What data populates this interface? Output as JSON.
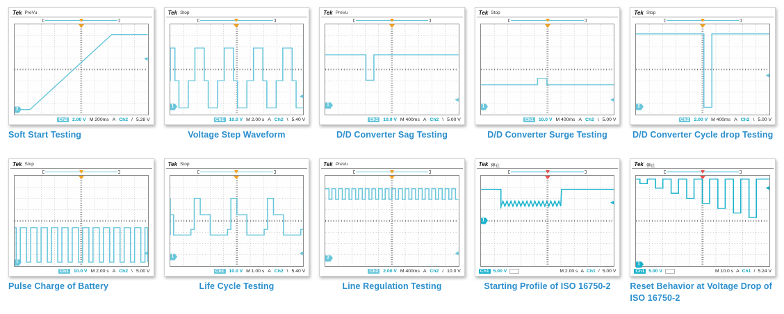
{
  "page": {
    "bg": "#ffffff",
    "caption_color": "#2b8fce",
    "scope_logo": "Tek"
  },
  "chart_data": [
    {
      "type": "line",
      "title": "Soft Start Testing",
      "scope": {
        "status": "PreVu"
      },
      "trace_color": "#68c6db",
      "t_color": "#f6a21d",
      "x_range": [
        0,
        10
      ],
      "y_range": [
        -4,
        4
      ],
      "grid": true,
      "readout": {
        "ch": "Ch2",
        "scale": "2.00 V",
        "time": "M 200ms",
        "acq": "A",
        "trig_ch": "Ch2",
        "slope": "/",
        "level": "5.28 V",
        "layout": "right"
      },
      "ch_marker": {
        "label": "2",
        "y": -3.55
      },
      "trig_y": 0.9,
      "waveform": [
        {
          "pts": [
            [
              0,
              -3.55
            ],
            [
              1.15,
              -3.55
            ],
            [
              7.3,
              3.1
            ],
            [
              10,
              3.1
            ]
          ]
        }
      ]
    },
    {
      "type": "line",
      "title": "Voltage Step Waveform",
      "scope": {
        "status": "Stop"
      },
      "trace_color": "#68c6db",
      "t_color": "#f6a21d",
      "x_range": [
        0,
        10
      ],
      "y_range": [
        -4,
        4
      ],
      "grid": true,
      "readout": {
        "ch": "Ch1",
        "scale": "10.0 V",
        "time": "M 2.00 s",
        "acq": "A",
        "trig_ch": "Ch2",
        "slope": "\\",
        "level": "5.40 V",
        "layout": "right"
      },
      "ch_marker": {
        "label": "1",
        "y": -3.3
      },
      "trig_y": -2.4,
      "waveform": [
        {
          "repeat": {
            "x0": -0.65,
            "period": 2.2,
            "count": 6,
            "pattern": [
              [
                0,
                -1.0
              ],
              [
                0.3,
                -1.0
              ],
              [
                0.3,
                1.9
              ],
              [
                1.0,
                1.9
              ],
              [
                1.0,
                -1.0
              ],
              [
                1.3,
                -1.0
              ],
              [
                1.3,
                -3.4
              ],
              [
                2.0,
                -3.4
              ],
              [
                2.0,
                -1.0
              ],
              [
                2.2,
                -1.0
              ]
            ]
          }
        }
      ]
    },
    {
      "type": "line",
      "title": "D/D Converter Sag Testing",
      "scope": {
        "status": "PreVu"
      },
      "trace_color": "#68c6db",
      "t_color": "#f6a21d",
      "x_range": [
        0,
        10
      ],
      "y_range": [
        -4,
        4
      ],
      "grid": true,
      "readout": {
        "ch": "Ch1",
        "scale": "10.0 V",
        "time": "M 400ms",
        "acq": "A",
        "trig_ch": "Ch2",
        "slope": "\\",
        "level": "5.00 V",
        "layout": "right"
      },
      "ch_marker": {
        "label": "1",
        "y": -3.2
      },
      "trig_y": -2.7,
      "waveform": [
        {
          "pts": [
            [
              0,
              1.3
            ],
            [
              3.05,
              1.3
            ],
            [
              3.05,
              -0.95
            ],
            [
              3.65,
              -0.95
            ],
            [
              3.65,
              1.3
            ],
            [
              10,
              1.3
            ]
          ]
        }
      ]
    },
    {
      "type": "line",
      "title": "D/D Converter Surge Testing",
      "scope": {
        "status": "Stop"
      },
      "trace_color": "#68c6db",
      "t_color": "#f6a21d",
      "x_range": [
        0,
        10
      ],
      "y_range": [
        -4,
        4
      ],
      "grid": true,
      "readout": {
        "ch": "Ch1",
        "scale": "10.0 V",
        "time": "M 400ms",
        "acq": "A",
        "trig_ch": "Ch2",
        "slope": "\\",
        "level": "5.00 V",
        "layout": "right"
      },
      "ch_marker": {
        "label": "1",
        "y": -3.35
      },
      "trig_y": -2.7,
      "waveform": [
        {
          "pts": [
            [
              0,
              -1.35
            ],
            [
              4.25,
              -1.35
            ],
            [
              4.25,
              -0.8
            ],
            [
              4.95,
              -0.8
            ],
            [
              4.95,
              -1.35
            ],
            [
              10,
              -1.35
            ]
          ]
        }
      ]
    },
    {
      "type": "line",
      "title": "D/D Converter Cycle drop Testing",
      "scope": {
        "status": "Stop"
      },
      "trace_color": "#68c6db",
      "t_color": "#f6a21d",
      "x_range": [
        0,
        10
      ],
      "y_range": [
        -4,
        4
      ],
      "grid": true,
      "readout": {
        "ch": "Ch2",
        "scale": "2.00 V",
        "time": "M 400ms",
        "acq": "A",
        "trig_ch": "Ch2",
        "slope": "\\",
        "level": "5.00 V",
        "layout": "right"
      },
      "ch_marker": {
        "label": "2",
        "y": -3.35
      },
      "trig_y": -0.55,
      "waveform": [
        {
          "pts": [
            [
              0,
              3.15
            ],
            [
              5.1,
              3.15
            ],
            [
              5.1,
              -3.35
            ],
            [
              5.7,
              -3.35
            ],
            [
              5.7,
              3.15
            ],
            [
              10,
              3.15
            ]
          ]
        }
      ]
    },
    {
      "type": "line",
      "title": "Pulse Charge of Battery",
      "scope": {
        "status": "Stop"
      },
      "trace_color": "#68c6db",
      "t_color": "#f6a21d",
      "x_range": [
        0,
        10
      ],
      "y_range": [
        -4,
        4
      ],
      "grid": true,
      "readout": {
        "ch": "Ch1",
        "scale": "10.0 V",
        "time": "M 2.00 s",
        "acq": "A",
        "trig_ch": "Ch2",
        "slope": "\\",
        "level": "5.00 V",
        "layout": "right"
      },
      "ch_marker": {
        "label": "1",
        "y": -3.65
      },
      "trig_y": -2.9,
      "waveform": [
        {
          "repeat": {
            "x0": -0.35,
            "period": 0.78,
            "count": 14,
            "pattern": [
              [
                0,
                -0.6
              ],
              [
                0.47,
                -0.6
              ],
              [
                0.47,
                -3.65
              ],
              [
                0.78,
                -3.65
              ]
            ]
          }
        }
      ]
    },
    {
      "type": "line",
      "title": "Life Cycle Testing",
      "scope": {
        "status": "Stop"
      },
      "trace_color": "#68c6db",
      "t_color": "#f6a21d",
      "x_range": [
        0,
        10
      ],
      "y_range": [
        -4,
        4
      ],
      "grid": true,
      "readout": {
        "ch": "Ch1",
        "scale": "10.0 V",
        "time": "M 1.00 s",
        "acq": "A",
        "trig_ch": "Ch2",
        "slope": "\\",
        "level": "5.40 V",
        "layout": "right"
      },
      "ch_marker": {
        "label": "1",
        "y": -3.2
      },
      "trig_y": -2.9,
      "waveform": [
        {
          "repeat": {
            "x0": -2.05,
            "period": 2.75,
            "count": 5,
            "pattern": [
              [
                0,
                -1.25
              ],
              [
                0.85,
                -1.25
              ],
              [
                0.85,
                -0.75
              ],
              [
                1.1,
                -0.75
              ],
              [
                1.1,
                2.0
              ],
              [
                1.55,
                2.0
              ],
              [
                1.55,
                0.55
              ],
              [
                2.3,
                0.55
              ],
              [
                2.3,
                -1.25
              ],
              [
                2.75,
                -1.25
              ]
            ]
          }
        }
      ]
    },
    {
      "type": "line",
      "title": "Line Regulation Testing",
      "scope": {
        "status": "PreVu"
      },
      "trace_color": "#68c6db",
      "t_color": "#f6a21d",
      "x_range": [
        0,
        10
      ],
      "y_range": [
        -4,
        4
      ],
      "grid": true,
      "readout": {
        "ch": "Ch2",
        "scale": "2.00 V",
        "time": "M 400ms",
        "acq": "A",
        "trig_ch": "Ch2",
        "slope": "/",
        "level": "10.0 V",
        "layout": "right"
      },
      "ch_marker": {
        "label": "2",
        "y": -3.3
      },
      "trig_y": -2.9,
      "waveform": [
        {
          "repeat": {
            "x0": 0,
            "period": 0.5,
            "count": 20,
            "pattern": [
              [
                0,
                2.85
              ],
              [
                0.28,
                2.85
              ],
              [
                0.28,
                1.9
              ],
              [
                0.5,
                1.9
              ]
            ]
          }
        }
      ]
    },
    {
      "type": "line",
      "title": "Starting Profile of ISO 16750-2",
      "scope": {
        "status": "停止"
      },
      "trace_color": "#19b2cc",
      "t_color": "#ee4d4d",
      "x_range": [
        0,
        10
      ],
      "y_range": [
        -4,
        4
      ],
      "grid": true,
      "readout": {
        "ch": "Ch1",
        "scale": "5.00 V",
        "time": "M 2.00 s",
        "acq": "A",
        "trig_ch": "Ch1",
        "slope": "/",
        "level": "5.00 V",
        "layout": "split"
      },
      "ch_marker": {
        "label": "1",
        "y": 0
      },
      "trig_y": 1.6,
      "waveform": [
        {
          "pts": [
            [
              0,
              2.8
            ],
            [
              1.5,
              2.8
            ],
            [
              1.5,
              1.1
            ]
          ]
        },
        {
          "repeat": {
            "x0": 1.5,
            "period": 0.3,
            "count": 15,
            "pattern": [
              [
                0,
                1.3
              ],
              [
                0.15,
                1.75
              ],
              [
                0.3,
                1.3
              ]
            ]
          }
        },
        {
          "pts": [
            [
              6.0,
              1.55
            ],
            [
              6.05,
              2.8
            ],
            [
              10,
              2.8
            ]
          ]
        }
      ]
    },
    {
      "type": "line",
      "title": "Reset Behavior at Voltage Drop of ISO 16750-2",
      "scope": {
        "status": "停止"
      },
      "trace_color": "#19b2cc",
      "t_color": "#ee4d4d",
      "x_range": [
        0,
        10
      ],
      "y_range": [
        -4,
        4
      ],
      "grid": true,
      "readout": {
        "ch": "Ch1",
        "scale": "5.00 V",
        "time": "M 10.0 s",
        "acq": "A",
        "trig_ch": "Ch1",
        "slope": "/",
        "level": "5.24 V",
        "layout": "split"
      },
      "ch_marker": {
        "label": "1",
        "y": -3.85
      },
      "trig_y": 2.9,
      "waveform": [
        {
          "pts": [
            [
              0,
              3.7
            ]
          ]
        },
        {
          "notches": {
            "x0": 0.3,
            "period": 1.17,
            "width": 0.55,
            "base": 3.7,
            "levels": [
              3.3,
              2.9,
              2.45,
              2.0,
              1.55,
              1.1,
              0.7,
              0.3
            ]
          }
        },
        {
          "pts": [
            [
              10,
              3.7
            ]
          ]
        }
      ]
    }
  ]
}
